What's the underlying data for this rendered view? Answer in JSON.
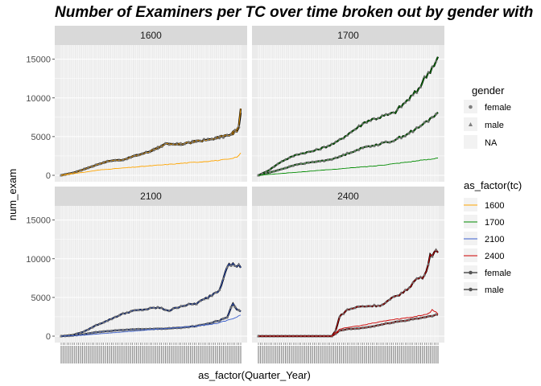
{
  "title": "Number of Examiners per TC over time broken out by gender with",
  "xlabel": "as_factor(Quarter_Year)",
  "ylabel": "num_exam",
  "colors": {
    "panel_bg": "#ebebeb",
    "strip_bg": "#d9d9d9",
    "grid": "#ffffff",
    "tc_1600": "#ffa500",
    "tc_1700": "#008b00",
    "tc_2100": "#3a5fcd",
    "tc_2400": "#cd0000",
    "points": "#808080",
    "black": "#000000"
  },
  "legend_gender": {
    "title": "gender",
    "items": [
      {
        "label": "female",
        "shape": "circle"
      },
      {
        "label": "male",
        "shape": "triangle"
      },
      {
        "label": "NA",
        "shape": "none"
      }
    ]
  },
  "legend_tc": {
    "title": "as_factor(tc)",
    "items": [
      {
        "label": "1600",
        "color": "#ffa500",
        "marker": false
      },
      {
        "label": "1700",
        "color": "#008b00",
        "marker": false
      },
      {
        "label": "2100",
        "color": "#3a5fcd",
        "marker": false
      },
      {
        "label": "2400",
        "color": "#cd0000",
        "marker": false
      },
      {
        "label": "female",
        "color": "#000000",
        "marker": true
      },
      {
        "label": "male",
        "color": "#000000",
        "marker": true
      }
    ]
  },
  "chart_data": {
    "type": "line",
    "facet_by": "tc",
    "x_categories_count": 93,
    "ylim": [
      0,
      16000
    ],
    "y_ticks": [
      0,
      5000,
      10000,
      15000
    ],
    "y_tick_labels": [
      "0",
      "5000",
      "10000",
      "15000"
    ],
    "panels": [
      {
        "strip": "1600",
        "series": [
          {
            "gender": "female",
            "anchors": [
              [
                0,
                0
              ],
              [
                6,
                300
              ],
              [
                12,
                800
              ],
              [
                20,
                1500
              ],
              [
                26,
                1900
              ],
              [
                32,
                2000
              ],
              [
                38,
                2500
              ],
              [
                46,
                3100
              ],
              [
                54,
                4000
              ],
              [
                62,
                4000
              ],
              [
                70,
                4400
              ],
              [
                76,
                4600
              ],
              [
                82,
                4900
              ],
              [
                88,
                5200
              ],
              [
                92,
                6000
              ],
              [
                93,
                8300
              ]
            ]
          },
          {
            "gender": "male",
            "anchors": [
              [
                0,
                0
              ],
              [
                6,
                300
              ],
              [
                12,
                800
              ],
              [
                20,
                1500
              ],
              [
                26,
                1900
              ],
              [
                32,
                2000
              ],
              [
                38,
                2500
              ],
              [
                46,
                3100
              ],
              [
                54,
                4000
              ],
              [
                62,
                4000
              ],
              [
                70,
                4400
              ],
              [
                76,
                4600
              ],
              [
                82,
                4900
              ],
              [
                88,
                5300
              ],
              [
                92,
                6200
              ],
              [
                93,
                8500
              ]
            ]
          },
          {
            "gender": "NA",
            "anchors": [
              [
                0,
                0
              ],
              [
                6,
                200
              ],
              [
                12,
                400
              ],
              [
                20,
                700
              ],
              [
                30,
                900
              ],
              [
                40,
                1100
              ],
              [
                50,
                1300
              ],
              [
                60,
                1500
              ],
              [
                70,
                1700
              ],
              [
                80,
                1900
              ],
              [
                88,
                2100
              ],
              [
                92,
                2500
              ],
              [
                93,
                2900
              ]
            ]
          }
        ]
      },
      {
        "strip": "1700",
        "series": [
          {
            "gender": "male",
            "anchors": [
              [
                0,
                0
              ],
              [
                5,
                600
              ],
              [
                12,
                1800
              ],
              [
                20,
                2700
              ],
              [
                28,
                3100
              ],
              [
                34,
                3600
              ],
              [
                40,
                4200
              ],
              [
                48,
                5600
              ],
              [
                56,
                7000
              ],
              [
                64,
                7600
              ],
              [
                70,
                8000
              ],
              [
                76,
                9400
              ],
              [
                82,
                10800
              ],
              [
                86,
                12500
              ],
              [
                90,
                14000
              ],
              [
                93,
                15200
              ]
            ]
          },
          {
            "gender": "female",
            "anchors": [
              [
                0,
                0
              ],
              [
                5,
                300
              ],
              [
                12,
                800
              ],
              [
                20,
                1400
              ],
              [
                28,
                1700
              ],
              [
                34,
                1900
              ],
              [
                40,
                2200
              ],
              [
                48,
                3000
              ],
              [
                56,
                3700
              ],
              [
                64,
                4100
              ],
              [
                70,
                4500
              ],
              [
                76,
                5200
              ],
              [
                82,
                6000
              ],
              [
                86,
                6700
              ],
              [
                90,
                7500
              ],
              [
                93,
                8200
              ]
            ]
          },
          {
            "gender": "NA",
            "anchors": [
              [
                0,
                0
              ],
              [
                10,
                200
              ],
              [
                20,
                400
              ],
              [
                30,
                600
              ],
              [
                40,
                800
              ],
              [
                50,
                1000
              ],
              [
                60,
                1200
              ],
              [
                70,
                1500
              ],
              [
                80,
                1800
              ],
              [
                90,
                2100
              ],
              [
                93,
                2300
              ]
            ]
          }
        ]
      },
      {
        "strip": "2100",
        "series": [
          {
            "gender": "male",
            "anchors": [
              [
                0,
                0
              ],
              [
                6,
                150
              ],
              [
                12,
                600
              ],
              [
                18,
                1400
              ],
              [
                24,
                2000
              ],
              [
                30,
                2700
              ],
              [
                36,
                3200
              ],
              [
                42,
                3400
              ],
              [
                50,
                3700
              ],
              [
                56,
                3300
              ],
              [
                62,
                3900
              ],
              [
                70,
                4200
              ],
              [
                76,
                5000
              ],
              [
                82,
                6000
              ],
              [
                86,
                9200
              ],
              [
                90,
                9200
              ],
              [
                93,
                9000
              ]
            ]
          },
          {
            "gender": "female",
            "anchors": [
              [
                0,
                0
              ],
              [
                6,
                80
              ],
              [
                12,
                250
              ],
              [
                18,
                500
              ],
              [
                24,
                650
              ],
              [
                30,
                750
              ],
              [
                36,
                850
              ],
              [
                42,
                900
              ],
              [
                50,
                950
              ],
              [
                56,
                1000
              ],
              [
                62,
                1100
              ],
              [
                70,
                1300
              ],
              [
                76,
                1600
              ],
              [
                82,
                2000
              ],
              [
                86,
                2500
              ],
              [
                89,
                4200
              ],
              [
                91,
                3500
              ],
              [
                93,
                3100
              ]
            ]
          },
          {
            "gender": "NA",
            "anchors": [
              [
                0,
                0
              ],
              [
                10,
                100
              ],
              [
                20,
                300
              ],
              [
                30,
                500
              ],
              [
                40,
                700
              ],
              [
                50,
                900
              ],
              [
                60,
                1100
              ],
              [
                70,
                1300
              ],
              [
                80,
                1600
              ],
              [
                86,
                2000
              ],
              [
                93,
                2700
              ]
            ]
          }
        ]
      },
      {
        "strip": "2400",
        "series": [
          {
            "gender": "male",
            "anchors": [
              [
                0,
                0
              ],
              [
                10,
                0
              ],
              [
                20,
                0
              ],
              [
                30,
                0
              ],
              [
                38,
                0
              ],
              [
                40,
                700
              ],
              [
                42,
                2500
              ],
              [
                46,
                3400
              ],
              [
                52,
                3800
              ],
              [
                58,
                3900
              ],
              [
                64,
                4000
              ],
              [
                70,
                5000
              ],
              [
                76,
                5800
              ],
              [
                82,
                7400
              ],
              [
                86,
                7700
              ],
              [
                89,
                10500
              ],
              [
                91,
                10700
              ],
              [
                93,
                11100
              ]
            ]
          },
          {
            "gender": "female",
            "anchors": [
              [
                0,
                0
              ],
              [
                10,
                0
              ],
              [
                20,
                0
              ],
              [
                30,
                0
              ],
              [
                38,
                0
              ],
              [
                40,
                300
              ],
              [
                42,
                700
              ],
              [
                46,
                900
              ],
              [
                52,
                1000
              ],
              [
                58,
                1200
              ],
              [
                64,
                1500
              ],
              [
                70,
                1800
              ],
              [
                76,
                2000
              ],
              [
                82,
                2300
              ],
              [
                86,
                2400
              ],
              [
                90,
                2600
              ],
              [
                93,
                2800
              ]
            ]
          },
          {
            "gender": "NA",
            "anchors": [
              [
                0,
                0
              ],
              [
                38,
                0
              ],
              [
                40,
                400
              ],
              [
                42,
                900
              ],
              [
                48,
                1200
              ],
              [
                54,
                1400
              ],
              [
                60,
                1700
              ],
              [
                66,
                2000
              ],
              [
                72,
                2200
              ],
              [
                78,
                2400
              ],
              [
                84,
                2700
              ],
              [
                88,
                2900
              ],
              [
                90,
                3400
              ],
              [
                93,
                2900
              ]
            ]
          }
        ]
      }
    ]
  }
}
